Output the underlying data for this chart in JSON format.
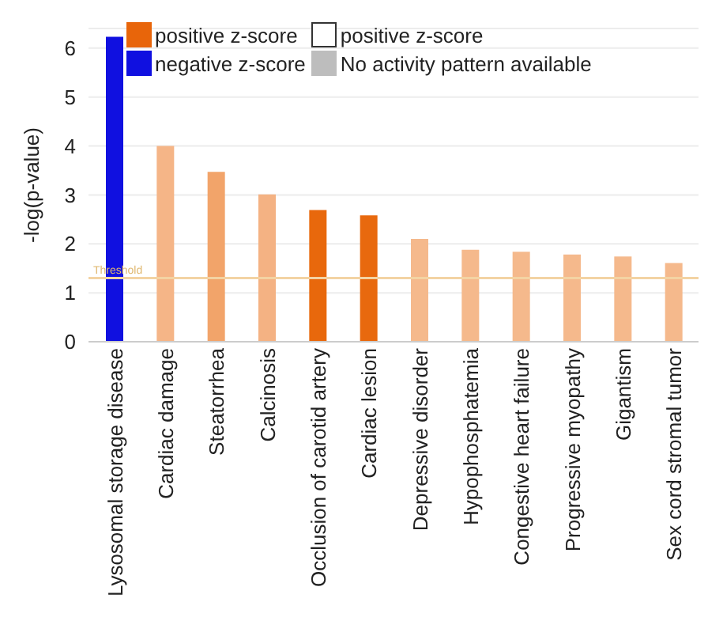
{
  "chart_data": {
    "type": "bar",
    "ylabel": "-log(p-value)",
    "categories": [
      "Lysosomal storage disease",
      "Cardiac damage",
      "Steatorrhea",
      "Calcinosis",
      "Occlusion of carotid artery",
      "Cardiac lesion",
      "Depressive disorder",
      "Hypophosphatemia",
      "Congestive heart failure",
      "Progressive myopathy",
      "Gigantism",
      "Sex cord stromal tumor"
    ],
    "series": [
      {
        "name": "positive z-score",
        "color": "#e8650a",
        "colors": [
          "#e8650a",
          "#f5b587",
          "#f2a46a",
          "#f4b283",
          "#e8680c",
          "#e8690e",
          "#f5b98c",
          "#f5b98c",
          "#f5b98c",
          "#f5b98c",
          "#f5b98c",
          "#f5b98c"
        ],
        "values": [
          null,
          4.0,
          3.47,
          3.01,
          2.69,
          2.58,
          2.1,
          1.88,
          1.84,
          1.78,
          1.74,
          1.61
        ]
      },
      {
        "name": "positive z-score",
        "color": "#ffffff",
        "values": [
          null,
          null,
          null,
          null,
          null,
          null,
          null,
          null,
          null,
          null,
          null,
          null
        ]
      },
      {
        "name": "negative z-score",
        "color": "#1010e0",
        "values": [
          6.23,
          null,
          null,
          null,
          null,
          null,
          null,
          null,
          null,
          null,
          null,
          null
        ]
      },
      {
        "name": "No activity pattern available",
        "color": "#bdbdbd",
        "values": [
          null,
          null,
          null,
          null,
          null,
          null,
          null,
          null,
          null,
          null,
          null,
          null
        ]
      }
    ],
    "stacked": true,
    "ylim": [
      0,
      6.4
    ],
    "yticks": [
      0,
      1,
      2,
      3,
      4,
      5,
      6
    ],
    "grid": "y",
    "legend": "top",
    "ref_lines": [
      {
        "axis": "y",
        "value": 1.3,
        "label": "Threshold",
        "color": "#f3d3a3"
      }
    ]
  }
}
